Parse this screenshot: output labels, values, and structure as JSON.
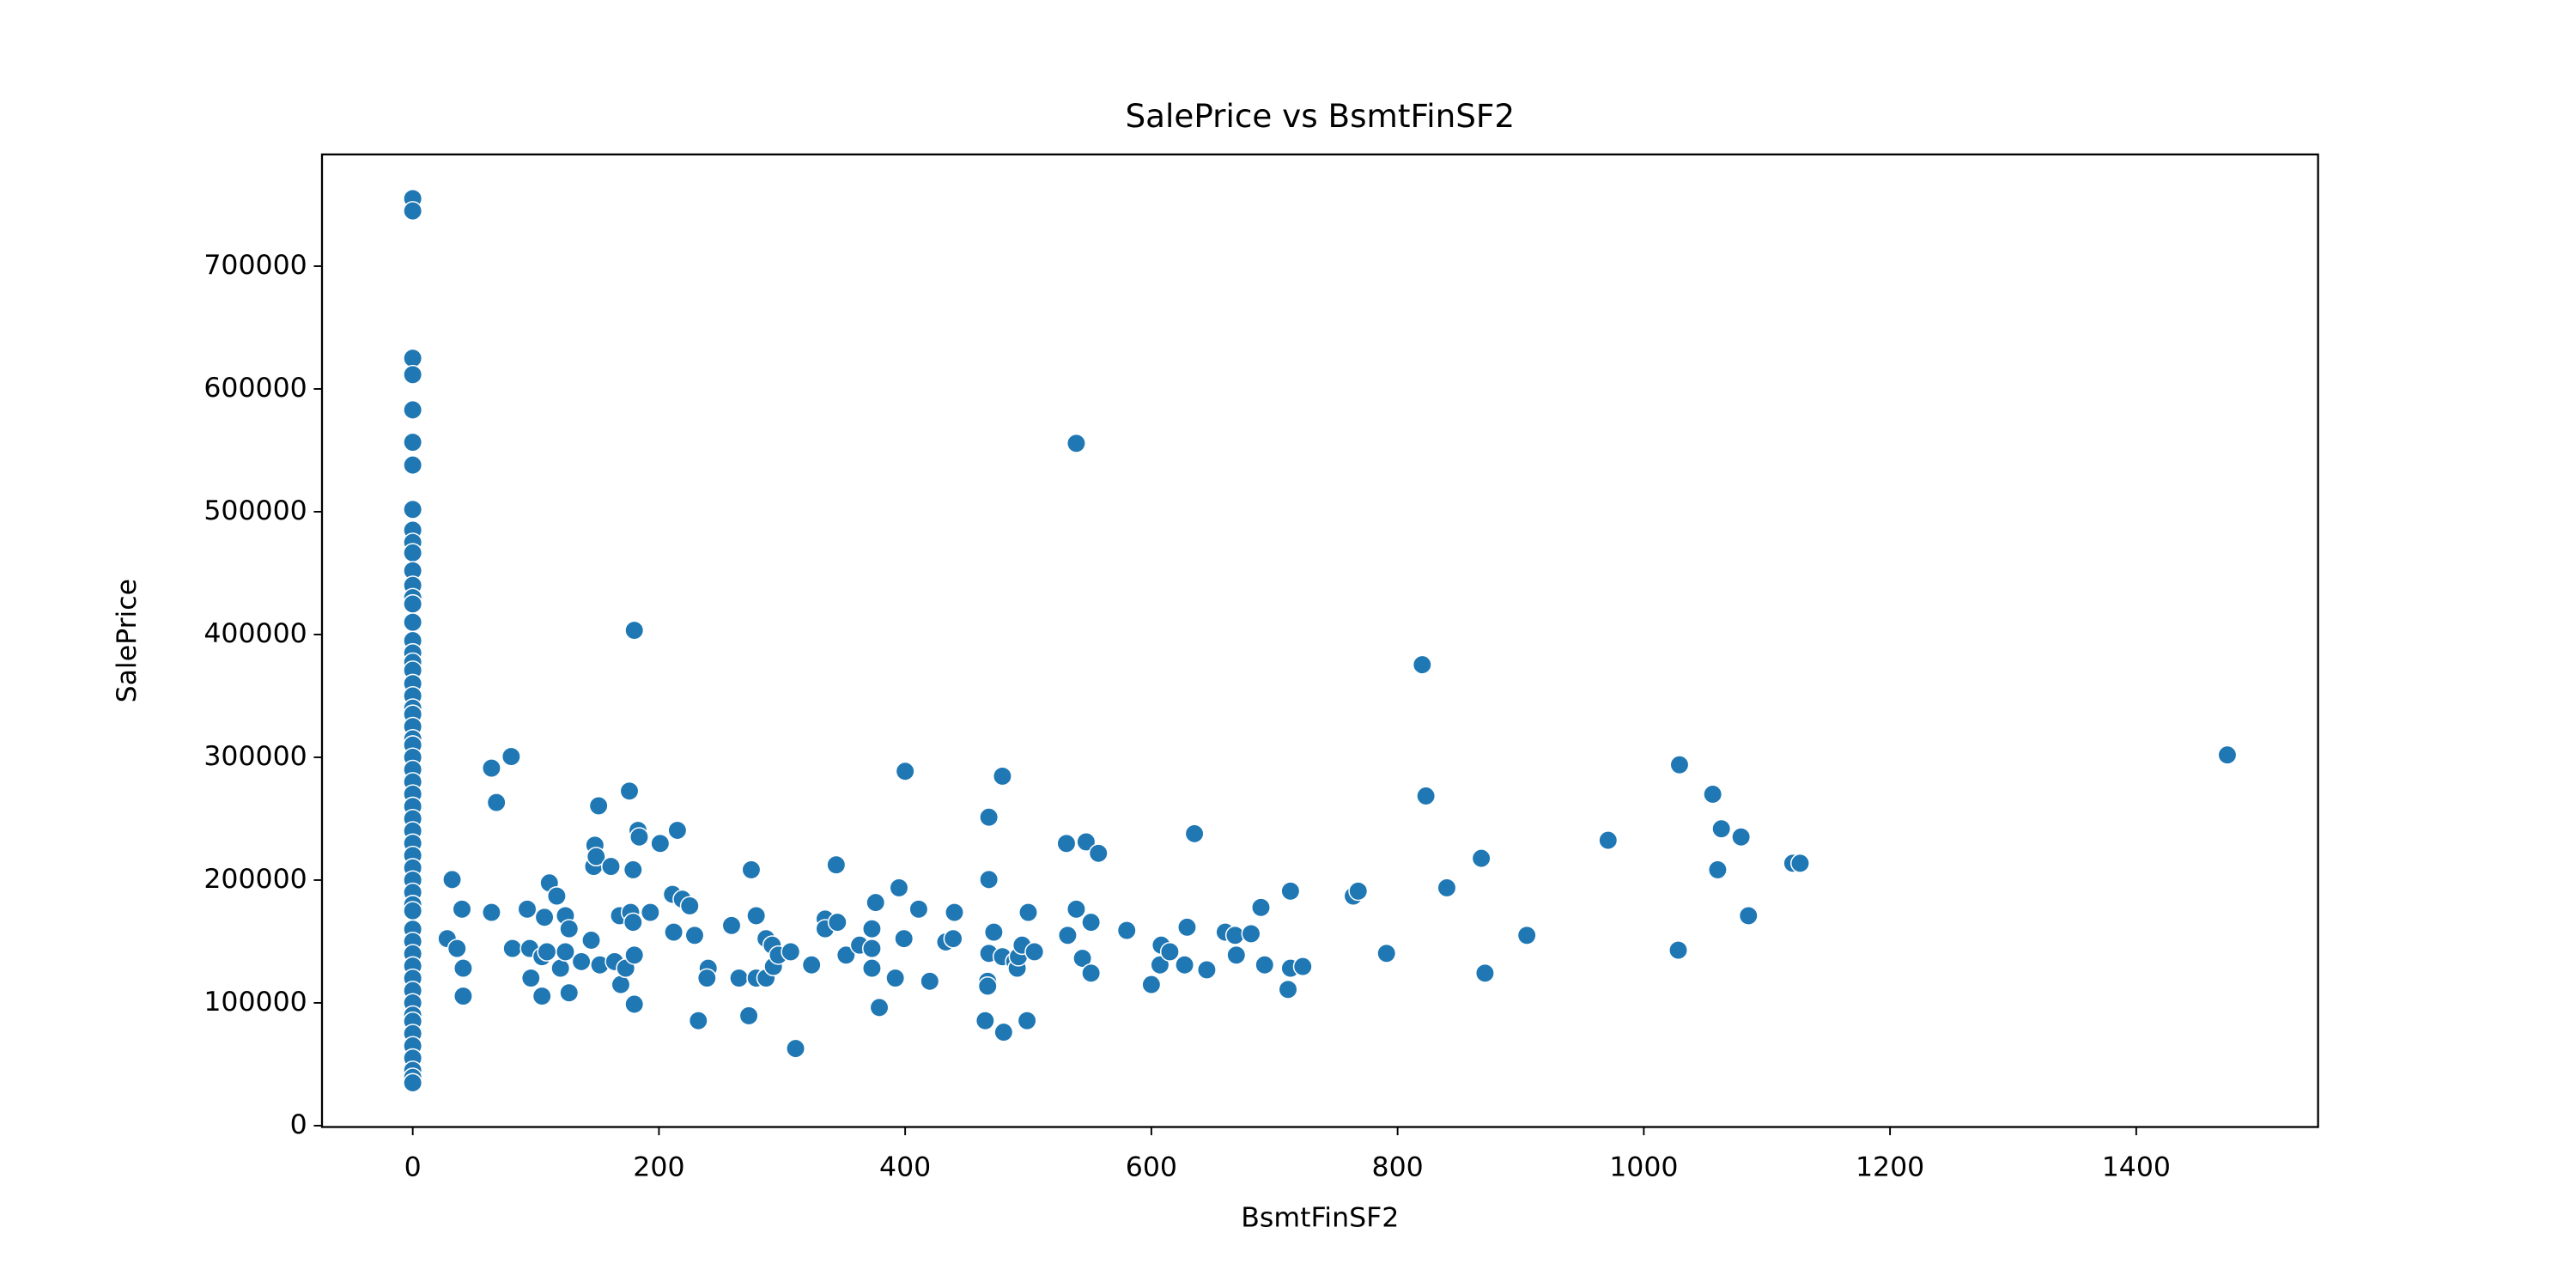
{
  "chart_data": {
    "type": "scatter",
    "title": "SalePrice vs BsmtFinSF2",
    "x_label": "BsmtFinSF2",
    "y_label": "SalePrice",
    "color": "#1f77b4",
    "xlim": [
      -73.7,
      1547.7
    ],
    "ylim": [
      -1100,
      791000
    ],
    "xticks": [
      0,
      200,
      400,
      600,
      800,
      1000,
      1200,
      1400
    ],
    "yticks": [
      0,
      100000,
      200000,
      300000,
      400000,
      500000,
      600000,
      700000
    ],
    "x": [
      0,
      0,
      0,
      0,
      0,
      0,
      0,
      0,
      0,
      0,
      0,
      0,
      0,
      0,
      0,
      0,
      0,
      0,
      0,
      0,
      0,
      0,
      0,
      0,
      0,
      0,
      0,
      0,
      0,
      0,
      0,
      0,
      0,
      0,
      0,
      0,
      0,
      0,
      0,
      0,
      0,
      0,
      0,
      0,
      0,
      0,
      0,
      0,
      0,
      0,
      0,
      0,
      0,
      0,
      0,
      0,
      32,
      28,
      36,
      40,
      41,
      41,
      64,
      64,
      68,
      80,
      81,
      93,
      95,
      96,
      105,
      105,
      111,
      107,
      109,
      117,
      124,
      120,
      124,
      127,
      127,
      137,
      145,
      147,
      148,
      149,
      151,
      152,
      161,
      164,
      168,
      169,
      173,
      176,
      177,
      180,
      179,
      179,
      180,
      180,
      183,
      184,
      193,
      201,
      211,
      212,
      215,
      219,
      225,
      229,
      232,
      240,
      239,
      259,
      265,
      275,
      273,
      279,
      279,
      287,
      287,
      292,
      293,
      297,
      307,
      311,
      324,
      335,
      335,
      344,
      345,
      352,
      363,
      373,
      373,
      373,
      376,
      379,
      392,
      395,
      399,
      400,
      411,
      420,
      433,
      439,
      440,
      468,
      468,
      467,
      467,
      468,
      465,
      472,
      479,
      479,
      480,
      489,
      491,
      492,
      495,
      500,
      499,
      505,
      531,
      532,
      539,
      539,
      544,
      547,
      551,
      551,
      557,
      580,
      600,
      608,
      607,
      615,
      627,
      629,
      635,
      645,
      660,
      668,
      669,
      681,
      689,
      692,
      711,
      713,
      713,
      723,
      764,
      768,
      791,
      820,
      823,
      840,
      868,
      871,
      905,
      971,
      1028,
      1029,
      1056,
      1063,
      1060,
      1079,
      1085,
      1121,
      1127,
      1474
    ],
    "y": [
      755000,
      745000,
      625000,
      611657,
      582933,
      556581,
      538000,
      501837,
      485000,
      475000,
      466500,
      451950,
      440000,
      430000,
      424870,
      410000,
      395000,
      385000,
      377426,
      370878,
      360000,
      350000,
      340000,
      335000,
      325000,
      315000,
      310000,
      300000,
      290000,
      280000,
      270000,
      260000,
      250000,
      240000,
      230000,
      220000,
      210000,
      200000,
      190000,
      180000,
      175000,
      160000,
      150000,
      140000,
      130000,
      120000,
      110000,
      100000,
      90000,
      85000,
      75000,
      65000,
      55000,
      45000,
      39300,
      34900,
      200400,
      152300,
      144300,
      176300,
      128200,
      105500,
      291200,
      173700,
      263200,
      300600,
      144300,
      176300,
      144300,
      120200,
      137600,
      105500,
      197700,
      169700,
      141600,
      187000,
      171000,
      128200,
      141600,
      160300,
      108200,
      133600,
      151000,
      211100,
      228400,
      219100,
      260500,
      130900,
      211100,
      133600,
      171000,
      114900,
      128200,
      272500,
      173700,
      403400,
      208400,
      165600,
      138900,
      98900,
      240500,
      235100,
      173700,
      229800,
      188400,
      157600,
      240500,
      184400,
      179000,
      155000,
      85500,
      128200,
      120200,
      163000,
      120200,
      208400,
      89500,
      171000,
      120200,
      152300,
      120200,
      147000,
      129600,
      138900,
      141600,
      62800,
      130900,
      168300,
      160300,
      212400,
      165600,
      138900,
      147000,
      160300,
      144300,
      128200,
      181700,
      96200,
      120200,
      193700,
      152300,
      288600,
      176300,
      117600,
      149600,
      152300,
      173700,
      251200,
      200400,
      117600,
      113600,
      140300,
      85500,
      157600,
      284600,
      137600,
      76100,
      133600,
      128200,
      137600,
      147000,
      173700,
      85500,
      141600,
      229800,
      155000,
      555700,
      176300,
      136300,
      231100,
      124200,
      165600,
      221800,
      159000,
      114900,
      147000,
      130900,
      141600,
      130900,
      161600,
      237800,
      126900,
      157600,
      155000,
      138900,
      156300,
      177700,
      130900,
      110900,
      128200,
      191000,
      129600,
      187000,
      191000,
      140300,
      375400,
      268500,
      193700,
      217700,
      124200,
      155000,
      232400,
      142900,
      293900,
      269900,
      241800,
      208400,
      235100,
      171000,
      213700,
      213700,
      301900
    ]
  }
}
